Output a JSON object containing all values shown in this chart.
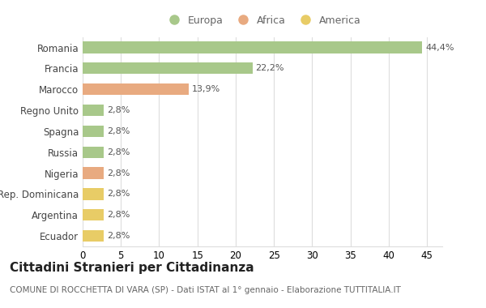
{
  "categories": [
    "Romania",
    "Francia",
    "Marocco",
    "Regno Unito",
    "Spagna",
    "Russia",
    "Nigeria",
    "Rep. Dominicana",
    "Argentina",
    "Ecuador"
  ],
  "values": [
    44.4,
    22.2,
    13.9,
    2.8,
    2.8,
    2.8,
    2.8,
    2.8,
    2.8,
    2.8
  ],
  "labels": [
    "44,4%",
    "22,2%",
    "13,9%",
    "2,8%",
    "2,8%",
    "2,8%",
    "2,8%",
    "2,8%",
    "2,8%",
    "2,8%"
  ],
  "colors": [
    "#a8c88a",
    "#a8c88a",
    "#e8aa80",
    "#a8c88a",
    "#a8c88a",
    "#a8c88a",
    "#e8aa80",
    "#e8cc66",
    "#e8cc66",
    "#e8cc66"
  ],
  "legend_labels": [
    "Europa",
    "Africa",
    "America"
  ],
  "legend_colors": [
    "#a8c88a",
    "#e8aa80",
    "#e8cc66"
  ],
  "title": "Cittadini Stranieri per Cittadinanza",
  "subtitle": "COMUNE DI ROCCHETTA DI VARA (SP) - Dati ISTAT al 1° gennaio - Elaborazione TUTTITALIA.IT",
  "xlim": [
    0,
    47
  ],
  "xticks": [
    0,
    5,
    10,
    15,
    20,
    25,
    30,
    35,
    40,
    45
  ],
  "bg_color": "#ffffff",
  "grid_color": "#dddddd",
  "bar_height": 0.55,
  "label_fontsize": 8,
  "title_fontsize": 11,
  "subtitle_fontsize": 7.5,
  "tick_fontsize": 8.5,
  "legend_fontsize": 9
}
